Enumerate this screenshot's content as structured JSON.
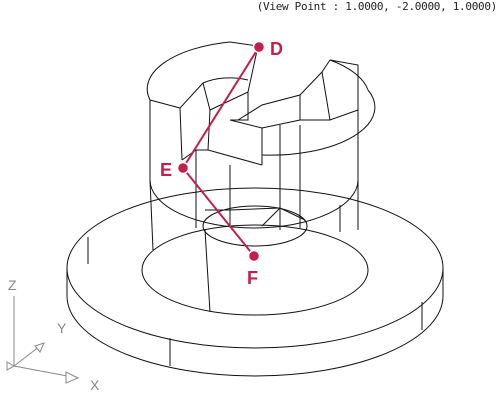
{
  "view_point_text": "(View Point : 1.0000, -2.0000, 1.0000)",
  "points": {
    "D": "D",
    "E": "E",
    "F": "F"
  },
  "axes": {
    "x": "X",
    "y": "Y",
    "z": "Z"
  },
  "colors": {
    "wire": "#111111",
    "accent": "#c41e4e"
  }
}
